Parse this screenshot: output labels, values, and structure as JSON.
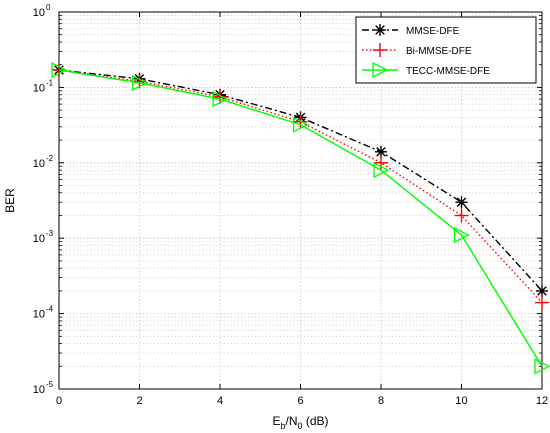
{
  "chart_data": {
    "type": "line",
    "x": [
      0,
      2,
      4,
      6,
      8,
      10,
      12
    ],
    "xlim": [
      0,
      12
    ],
    "xticks": [
      "0",
      "2",
      "4",
      "6",
      "8",
      "10",
      "12"
    ],
    "ylim": [
      1e-05,
      1
    ],
    "yscale": "log",
    "yticks": [
      {
        "base": "10",
        "exp": "0"
      },
      {
        "base": "10",
        "exp": "-1"
      },
      {
        "base": "10",
        "exp": "-2"
      },
      {
        "base": "10",
        "exp": "-3"
      },
      {
        "base": "10",
        "exp": "-4"
      },
      {
        "base": "10",
        "exp": "-5"
      }
    ],
    "ylabel": "BER",
    "xlabel": {
      "main": "E",
      "sub1": "b",
      "mid": "/N",
      "sub2": "0",
      "tail": " (dB)"
    },
    "grid": true,
    "legend_position": "top-right",
    "series": [
      {
        "name": "MMSE-DFE",
        "color": "#000000",
        "linestyle": "dash-dot",
        "marker": "asterisk",
        "values": [
          0.17,
          0.13,
          0.08,
          0.04,
          0.014,
          0.003,
          0.0002
        ]
      },
      {
        "name": "Bi-MMSE-DFE",
        "color": "#ff0000",
        "linestyle": "dotted",
        "marker": "plus",
        "values": [
          0.17,
          0.12,
          0.075,
          0.035,
          0.01,
          0.002,
          0.00014
        ]
      },
      {
        "name": "TECC-MMSE-DFE",
        "color": "#00ff00",
        "linestyle": "solid",
        "marker": "triangle-right",
        "values": [
          0.17,
          0.115,
          0.07,
          0.032,
          0.008,
          0.0011,
          2e-05
        ]
      }
    ]
  }
}
